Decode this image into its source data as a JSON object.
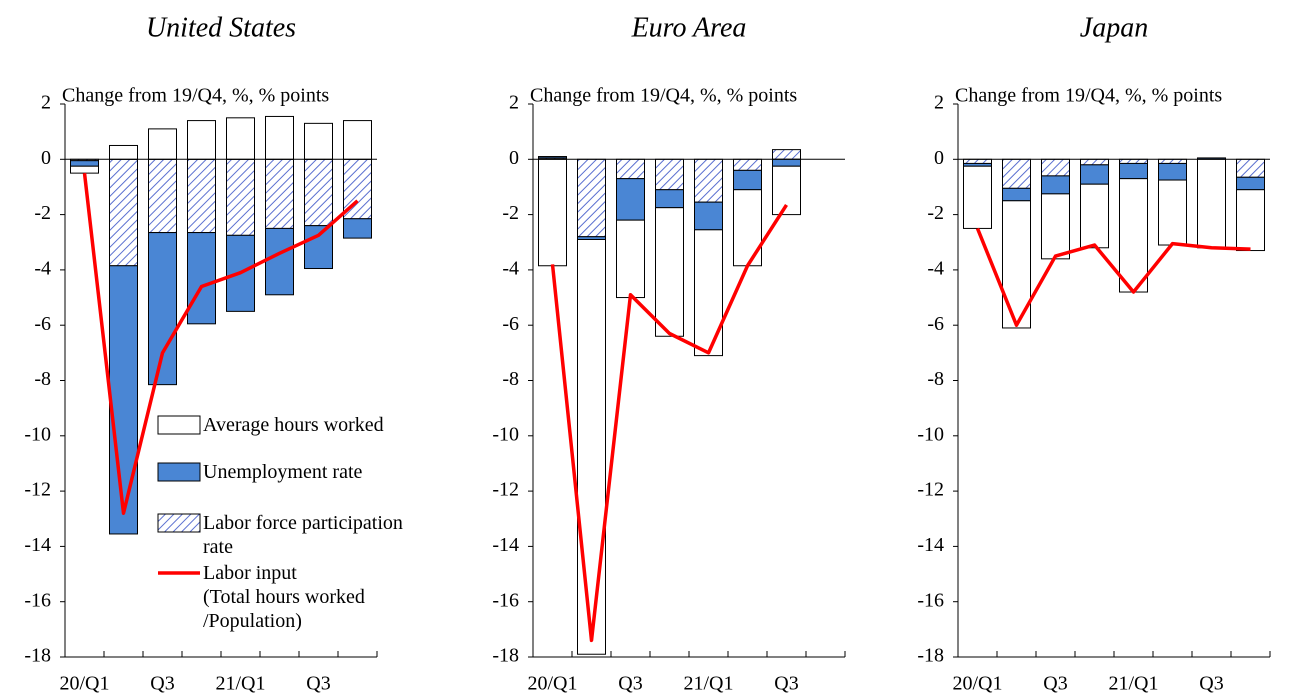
{
  "chart_data": [
    {
      "type": "bar",
      "title": "United States",
      "subtitle": "Change from 19/Q4, %, % points",
      "categories": [
        "20/Q1",
        null,
        "Q3",
        null,
        "21/Q1",
        null,
        "Q3",
        null
      ],
      "ylim": [
        -18,
        2
      ],
      "yticks": [
        -18,
        -16,
        -14,
        -12,
        -10,
        -8,
        -6,
        -4,
        -2,
        0,
        2
      ],
      "series": [
        {
          "name": "Average hours worked",
          "type": "bar",
          "color": "#ffffff",
          "values": [
            -0.25,
            0.5,
            1.1,
            1.4,
            1.5,
            1.55,
            1.3,
            1.4
          ]
        },
        {
          "name": "Unemployment rate",
          "type": "bar",
          "color": "#4a86d4",
          "values": [
            -0.2,
            -9.7,
            -5.5,
            -3.3,
            -2.75,
            -2.4,
            -1.55,
            -0.7
          ]
        },
        {
          "name": "Labor force participation rate",
          "type": "bar",
          "color": "#5a6fd0",
          "hatch": true,
          "values": [
            -0.05,
            -3.85,
            -2.65,
            -2.65,
            -2.75,
            -2.5,
            -2.4,
            -2.15
          ]
        },
        {
          "name": "Labor input\n(Total hours worked\n/Population)",
          "type": "line",
          "color": "#ff0000",
          "values": [
            -0.5,
            -12.8,
            -7.0,
            -4.6,
            -4.1,
            -3.4,
            -2.75,
            -1.5
          ]
        }
      ]
    },
    {
      "type": "bar",
      "title": "Euro Area",
      "subtitle": "Change from 19/Q4, %, % points",
      "categories": [
        "20/Q1",
        null,
        "Q3",
        null,
        "21/Q1",
        null,
        "Q3",
        null
      ],
      "ylim": [
        -18,
        2
      ],
      "yticks": [
        -18,
        -16,
        -14,
        -12,
        -10,
        -8,
        -6,
        -4,
        -2,
        0,
        2
      ],
      "series": [
        {
          "type": "bar",
          "color": "#ffffff",
          "values": [
            -3.85,
            -15.0,
            -2.8,
            -4.65,
            -4.55,
            -2.75,
            -1.75,
            null
          ]
        },
        {
          "type": "bar",
          "color": "#4a86d4",
          "values": [
            0.05,
            -0.1,
            -1.5,
            -0.65,
            -1.0,
            -0.7,
            -0.25,
            null
          ]
        },
        {
          "type": "bar",
          "color": "#5a6fd0",
          "hatch": true,
          "values": [
            0.05,
            -2.8,
            -0.7,
            -1.1,
            -1.55,
            -0.4,
            0.35,
            null
          ]
        },
        {
          "type": "line",
          "color": "#ff0000",
          "values": [
            -3.8,
            -17.4,
            -4.9,
            -6.3,
            -7.0,
            -3.85,
            -1.65,
            null
          ]
        }
      ]
    },
    {
      "type": "bar",
      "title": "Japan",
      "subtitle": "Change from 19/Q4, %, % points",
      "categories": [
        "20/Q1",
        null,
        "Q3",
        null,
        "21/Q1",
        null,
        "Q3",
        null
      ],
      "ylim": [
        -18,
        2
      ],
      "yticks": [
        -18,
        -16,
        -14,
        -12,
        -10,
        -8,
        -6,
        -4,
        -2,
        0,
        2
      ],
      "series": [
        {
          "type": "bar",
          "color": "#ffffff",
          "values": [
            -2.25,
            -4.6,
            -2.35,
            -2.3,
            -4.1,
            -2.35,
            -3.2,
            -2.2
          ]
        },
        {
          "type": "bar",
          "color": "#4a86d4",
          "values": [
            -0.1,
            -0.45,
            -0.65,
            -0.7,
            -0.55,
            -0.6,
            0.05,
            -0.45
          ]
        },
        {
          "type": "bar",
          "color": "#5a6fd0",
          "hatch": true,
          "values": [
            -0.15,
            -1.05,
            -0.6,
            -0.2,
            -0.15,
            -0.15,
            0,
            -0.65
          ]
        },
        {
          "type": "line",
          "color": "#ff0000",
          "values": [
            -2.5,
            -6.0,
            -3.5,
            -3.1,
            -4.8,
            -3.05,
            -3.2,
            -3.25
          ]
        }
      ]
    }
  ]
}
